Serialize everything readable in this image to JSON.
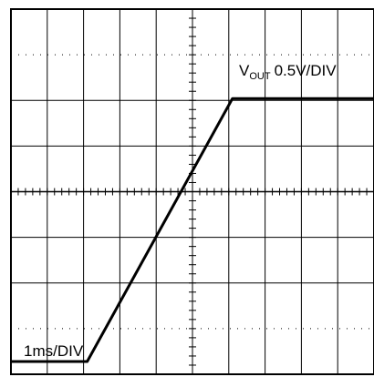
{
  "chart_data": {
    "type": "line",
    "title": "",
    "grid": true,
    "divisions": {
      "x": 10,
      "y": 8
    },
    "x_scale_label": "1ms/DIV",
    "channel": {
      "name_main": "V",
      "name_sub": "OUT",
      "scale": "0.5V/DIV"
    },
    "series": [
      {
        "x": [
          0,
          2.1,
          6.1,
          10
        ],
        "y": [
          0.28,
          0.28,
          6.04,
          6.04
        ]
      }
    ],
    "trace_color": "#000000"
  }
}
